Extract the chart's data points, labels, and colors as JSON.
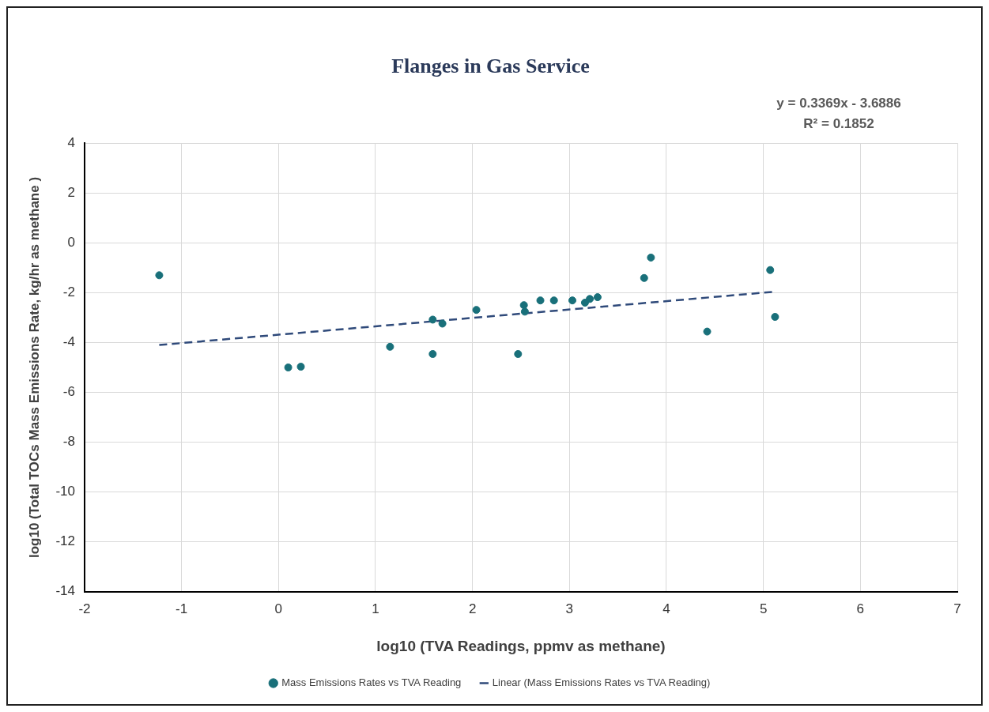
{
  "chart_data": {
    "type": "scatter",
    "title": "Flanges in Gas Service",
    "xlabel": "log10 (TVA Readings, ppmv as methane)",
    "ylabel": "log10 (Total TOCs Mass Emissions Rate, kg/hr as methane )",
    "annotations": [
      "y = 0.3369x - 3.6886",
      "R² = 0.1852"
    ],
    "series": [
      {
        "name": "Mass Emissions Rates vs TVA Reading",
        "color": "#19707a",
        "marker": "circle",
        "x": [
          -1.23,
          0.1,
          0.23,
          1.15,
          1.59,
          1.69,
          1.59,
          2.04,
          2.47,
          2.53,
          2.54,
          2.7,
          2.84,
          3.03,
          3.16,
          3.21,
          3.29,
          3.77,
          3.84,
          4.42,
          5.07,
          5.12
        ],
        "values": [
          -1.3,
          -5.0,
          -4.97,
          -4.17,
          -3.08,
          -3.24,
          -4.46,
          -2.69,
          -4.46,
          -2.5,
          -2.76,
          -2.31,
          -2.31,
          -2.31,
          -2.4,
          -2.25,
          -2.18,
          -1.41,
          -0.59,
          -3.56,
          -1.09,
          -2.97
        ]
      },
      {
        "name": "Linear (Mass Emissions Rates vs TVA Reading)",
        "type": "line",
        "color": "#2f4a7a",
        "line_style": "dashed",
        "marker": "none",
        "x": [
          -1.23,
          5.12
        ],
        "values": [
          -4.1,
          -1.96
        ]
      }
    ],
    "xlim": [
      -2,
      7
    ],
    "xticks": [
      -2,
      -1,
      0,
      1,
      2,
      3,
      4,
      5,
      6,
      7
    ],
    "ylim": [
      -14,
      4
    ],
    "yticks": [
      -14,
      -12,
      -10,
      -8,
      -6,
      -4,
      -2,
      0,
      2,
      4
    ],
    "grid": true,
    "legend": "bottom"
  }
}
